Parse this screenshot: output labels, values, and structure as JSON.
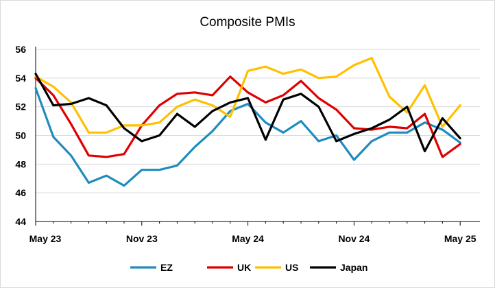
{
  "chart_data": {
    "type": "line",
    "title": "Composite PMIs",
    "xlabel": "",
    "ylabel": "",
    "ylim": [
      44,
      56
    ],
    "yticks": [
      44,
      46,
      48,
      50,
      52,
      54,
      56
    ],
    "x_tick_labels": [
      {
        "label": "May 23",
        "index": 0
      },
      {
        "label": "Nov 23",
        "index": 6
      },
      {
        "label": "May 24",
        "index": 12
      },
      {
        "label": "Nov 24",
        "index": 18
      },
      {
        "label": "May 25",
        "index": 24
      }
    ],
    "x": [
      "May 23",
      "Jun 23",
      "Jul 23",
      "Aug 23",
      "Sep 23",
      "Oct 23",
      "Nov 23",
      "Dec 23",
      "Jan 24",
      "Feb 24",
      "Mar 24",
      "Apr 24",
      "May 24",
      "Jun 24",
      "Jul 24",
      "Aug 24",
      "Sep 24",
      "Oct 24",
      "Nov 24",
      "Dec 24",
      "Jan 25",
      "Feb 25",
      "Mar 25",
      "Apr 25",
      "May 25"
    ],
    "grid": "horizontal",
    "legend_position": "bottom",
    "series": [
      {
        "name": "EZ",
        "color": "#1f8bbf",
        "values": [
          53.3,
          49.9,
          48.6,
          46.7,
          47.2,
          46.5,
          47.6,
          47.6,
          47.9,
          49.2,
          50.3,
          51.7,
          52.2,
          50.9,
          50.2,
          51.0,
          49.6,
          50.0,
          48.3,
          49.6,
          50.2,
          50.2,
          50.9,
          50.4,
          49.5
        ]
      },
      {
        "name": "UK",
        "color": "#e00000",
        "values": [
          54.0,
          52.8,
          50.8,
          48.6,
          48.5,
          48.7,
          50.7,
          52.1,
          52.9,
          53.0,
          52.8,
          54.1,
          53.0,
          52.3,
          52.8,
          53.8,
          52.6,
          51.8,
          50.5,
          50.4,
          50.6,
          50.5,
          51.5,
          48.5,
          49.4
        ]
      },
      {
        "name": "US",
        "color": "#ffc000",
        "values": [
          54.1,
          53.4,
          52.3,
          50.2,
          50.2,
          50.7,
          50.7,
          50.9,
          52.0,
          52.5,
          52.1,
          51.3,
          54.5,
          54.8,
          54.3,
          54.6,
          54.0,
          54.1,
          54.9,
          55.4,
          52.7,
          51.6,
          53.5,
          50.6,
          52.1
        ]
      },
      {
        "name": "Japan",
        "color": "#000000",
        "values": [
          54.3,
          52.1,
          52.2,
          52.6,
          52.1,
          50.5,
          49.6,
          50.0,
          51.5,
          50.6,
          51.7,
          52.3,
          52.6,
          49.7,
          52.5,
          52.9,
          52.0,
          49.6,
          50.1,
          50.5,
          51.1,
          52.0,
          48.9,
          51.2,
          49.8
        ]
      }
    ]
  }
}
